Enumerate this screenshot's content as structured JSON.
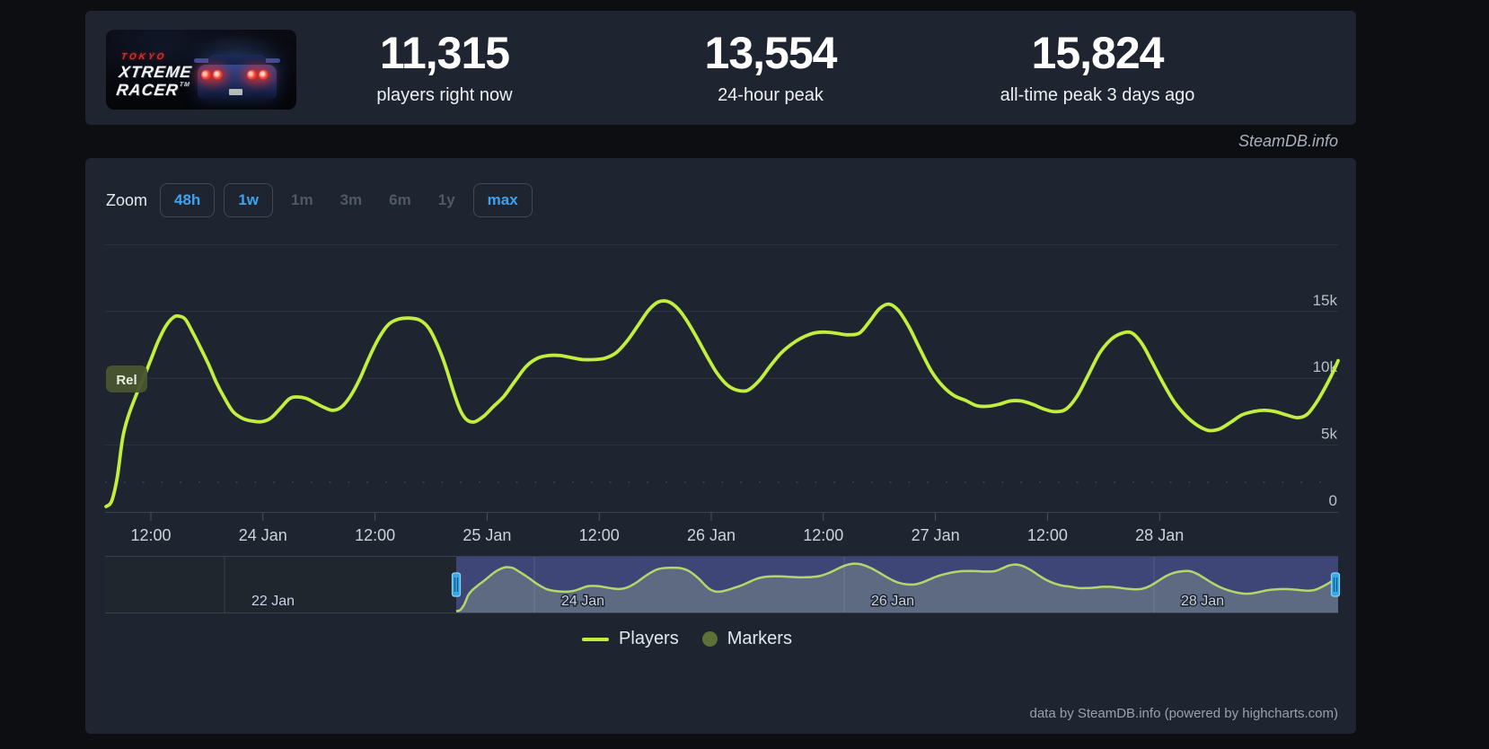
{
  "header": {
    "game": {
      "logo_top": "TOKYO",
      "logo_line1": "XTREME",
      "logo_line2": "RACER",
      "trademark": "TM"
    },
    "stats": [
      {
        "value": "11,315",
        "label": "players right now"
      },
      {
        "value": "13,554",
        "label": "24-hour peak"
      },
      {
        "value": "15,824",
        "label": "all-time peak 3 days ago"
      }
    ]
  },
  "watermark": "SteamDB.info",
  "toolbar": {
    "zoom_label": "Zoom",
    "ranges": [
      {
        "label": "48h",
        "state": "active"
      },
      {
        "label": "1w",
        "state": "active"
      },
      {
        "label": "1m",
        "state": "disabled"
      },
      {
        "label": "3m",
        "state": "disabled"
      },
      {
        "label": "6m",
        "state": "disabled"
      },
      {
        "label": "1y",
        "state": "disabled"
      },
      {
        "label": "max",
        "state": "active"
      }
    ]
  },
  "legend": [
    {
      "label": "Players",
      "swatch": "line"
    },
    {
      "label": "Markers",
      "swatch": "circle"
    }
  ],
  "attribution": "data by SteamDB.info (powered by highcharts.com)",
  "chart_data": {
    "type": "line",
    "title": "",
    "xlabel": "",
    "ylabel": "",
    "x_unit": "hours since 23 Jan 00:00",
    "ylim": [
      0,
      20000
    ],
    "grid": true,
    "legend_position": "bottom-center",
    "y_ticks": [
      {
        "v": 0,
        "label": "0"
      },
      {
        "v": 5000,
        "label": "5k"
      },
      {
        "v": 10000,
        "label": "10k"
      },
      {
        "v": 15000,
        "label": "15k"
      },
      {
        "v": 20000,
        "label": ""
      }
    ],
    "x_ticks": [
      {
        "t": 12,
        "label": "12:00"
      },
      {
        "t": 24,
        "label": "24 Jan"
      },
      {
        "t": 36,
        "label": "12:00"
      },
      {
        "t": 48,
        "label": "25 Jan"
      },
      {
        "t": 60,
        "label": "12:00"
      },
      {
        "t": 72,
        "label": "26 Jan"
      },
      {
        "t": 84,
        "label": "12:00"
      },
      {
        "t": 96,
        "label": "27 Jan"
      },
      {
        "t": 108,
        "label": "12:00"
      },
      {
        "t": 120,
        "label": "28 Jan"
      }
    ],
    "annotations": [
      {
        "label": "Rel"
      }
    ],
    "series": [
      {
        "name": "Players",
        "points": [
          [
            7.2,
            400
          ],
          [
            7.8,
            800
          ],
          [
            8.4,
            2600
          ],
          [
            9.0,
            5600
          ],
          [
            9.6,
            7200
          ],
          [
            10.4,
            8700
          ],
          [
            11.2,
            10000
          ],
          [
            12.0,
            11400
          ],
          [
            12.8,
            12800
          ],
          [
            13.6,
            13900
          ],
          [
            14.4,
            14550
          ],
          [
            15.0,
            14650
          ],
          [
            15.7,
            14400
          ],
          [
            16.5,
            13400
          ],
          [
            17.3,
            12300
          ],
          [
            18.2,
            11000
          ],
          [
            19.0,
            9700
          ],
          [
            19.9,
            8500
          ],
          [
            20.8,
            7500
          ],
          [
            21.8,
            7000
          ],
          [
            22.8,
            6800
          ],
          [
            23.8,
            6750
          ],
          [
            24.8,
            7000
          ],
          [
            25.8,
            7700
          ],
          [
            26.8,
            8450
          ],
          [
            27.6,
            8600
          ],
          [
            28.6,
            8500
          ],
          [
            29.6,
            8150
          ],
          [
            30.6,
            7800
          ],
          [
            31.5,
            7600
          ],
          [
            32.4,
            7850
          ],
          [
            33.4,
            8700
          ],
          [
            34.4,
            10000
          ],
          [
            35.4,
            11600
          ],
          [
            36.4,
            13000
          ],
          [
            37.4,
            14000
          ],
          [
            38.4,
            14400
          ],
          [
            39.6,
            14500
          ],
          [
            40.8,
            14350
          ],
          [
            41.8,
            13700
          ],
          [
            42.8,
            12300
          ],
          [
            43.6,
            10800
          ],
          [
            44.4,
            9000
          ],
          [
            45.2,
            7500
          ],
          [
            45.9,
            6850
          ],
          [
            46.7,
            6750
          ],
          [
            47.7,
            7200
          ],
          [
            48.7,
            7900
          ],
          [
            49.8,
            8650
          ],
          [
            51.0,
            9800
          ],
          [
            52.2,
            10900
          ],
          [
            53.4,
            11500
          ],
          [
            54.6,
            11700
          ],
          [
            55.8,
            11700
          ],
          [
            57.0,
            11550
          ],
          [
            58.2,
            11400
          ],
          [
            59.4,
            11400
          ],
          [
            60.6,
            11500
          ],
          [
            61.8,
            11900
          ],
          [
            63.0,
            12800
          ],
          [
            64.2,
            14000
          ],
          [
            65.3,
            15100
          ],
          [
            66.3,
            15700
          ],
          [
            67.3,
            15750
          ],
          [
            68.3,
            15300
          ],
          [
            69.3,
            14400
          ],
          [
            70.4,
            13100
          ],
          [
            71.5,
            11700
          ],
          [
            72.6,
            10400
          ],
          [
            73.7,
            9500
          ],
          [
            74.8,
            9100
          ],
          [
            75.9,
            9100
          ],
          [
            77.1,
            9800
          ],
          [
            78.3,
            10900
          ],
          [
            79.5,
            11900
          ],
          [
            80.7,
            12600
          ],
          [
            81.9,
            13100
          ],
          [
            83.1,
            13400
          ],
          [
            84.3,
            13450
          ],
          [
            85.5,
            13350
          ],
          [
            86.7,
            13250
          ],
          [
            87.9,
            13400
          ],
          [
            89.0,
            14300
          ],
          [
            90.0,
            15200
          ],
          [
            91.0,
            15550
          ],
          [
            92.0,
            15100
          ],
          [
            93.2,
            13800
          ],
          [
            94.4,
            12100
          ],
          [
            95.6,
            10500
          ],
          [
            96.8,
            9400
          ],
          [
            98.0,
            8700
          ],
          [
            99.2,
            8350
          ],
          [
            100.4,
            7950
          ],
          [
            101.6,
            7900
          ],
          [
            102.8,
            8050
          ],
          [
            104.0,
            8300
          ],
          [
            105.2,
            8300
          ],
          [
            106.4,
            8050
          ],
          [
            107.6,
            7700
          ],
          [
            108.8,
            7500
          ],
          [
            110.0,
            7700
          ],
          [
            111.2,
            8700
          ],
          [
            112.4,
            10300
          ],
          [
            113.6,
            11900
          ],
          [
            114.8,
            12900
          ],
          [
            115.9,
            13350
          ],
          [
            117.0,
            13400
          ],
          [
            118.1,
            12600
          ],
          [
            119.2,
            11200
          ],
          [
            120.4,
            9600
          ],
          [
            121.6,
            8200
          ],
          [
            122.8,
            7200
          ],
          [
            124.0,
            6500
          ],
          [
            125.2,
            6100
          ],
          [
            126.4,
            6200
          ],
          [
            127.6,
            6700
          ],
          [
            128.8,
            7250
          ],
          [
            130.0,
            7500
          ],
          [
            131.2,
            7600
          ],
          [
            132.4,
            7500
          ],
          [
            133.6,
            7250
          ],
          [
            134.8,
            7050
          ],
          [
            135.8,
            7300
          ],
          [
            136.8,
            8200
          ],
          [
            137.8,
            9400
          ],
          [
            138.6,
            10500
          ],
          [
            139.3,
            11315
          ]
        ]
      },
      {
        "name": "Markers",
        "points": []
      }
    ],
    "navigator": {
      "ticks": [
        "22 Jan",
        "24 Jan",
        "26 Jan",
        "28 Jan"
      ]
    },
    "colors": {
      "line": "#c2ee3d",
      "marker": "#5d7035",
      "navigator_line": "#b4d76b",
      "navigator_area": "#5d6a82",
      "navigator_mask": "#3d4677",
      "handle": "#35a8ea"
    }
  }
}
